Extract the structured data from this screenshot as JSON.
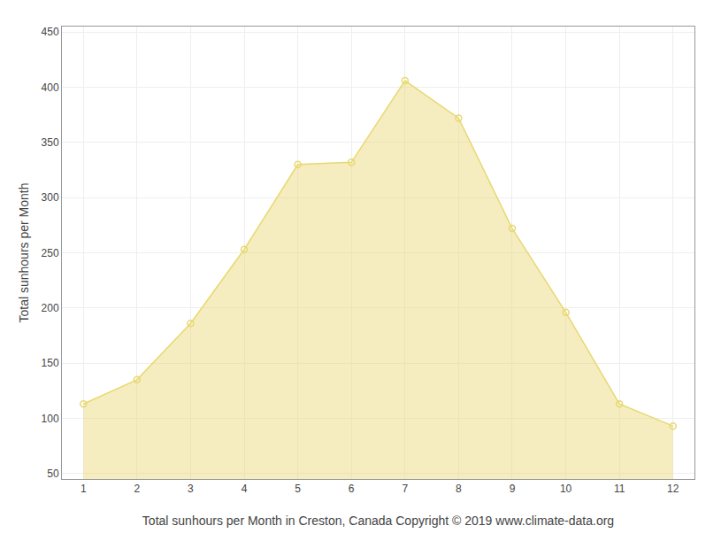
{
  "chart_data": {
    "type": "area",
    "x": [
      1,
      2,
      3,
      4,
      5,
      6,
      7,
      8,
      9,
      10,
      11,
      12
    ],
    "values": [
      113,
      135,
      186,
      253,
      330,
      332,
      406,
      372,
      272,
      196,
      113,
      93
    ],
    "color": "#e8d870",
    "marker": "circle-open",
    "xlabel": "Total sunhours per Month in Creston, Canada Copyright © 2019 www.climate-data.org",
    "ylabel": "Total sunhours per Month",
    "xlim": [
      0.6,
      12.4
    ],
    "xticks": [
      1,
      2,
      3,
      4,
      5,
      6,
      7,
      8,
      9,
      10,
      11,
      12
    ],
    "ylim": [
      45,
      455
    ],
    "yticks": [
      50,
      100,
      150,
      200,
      250,
      300,
      350,
      400,
      450
    ],
    "grid": true
  }
}
